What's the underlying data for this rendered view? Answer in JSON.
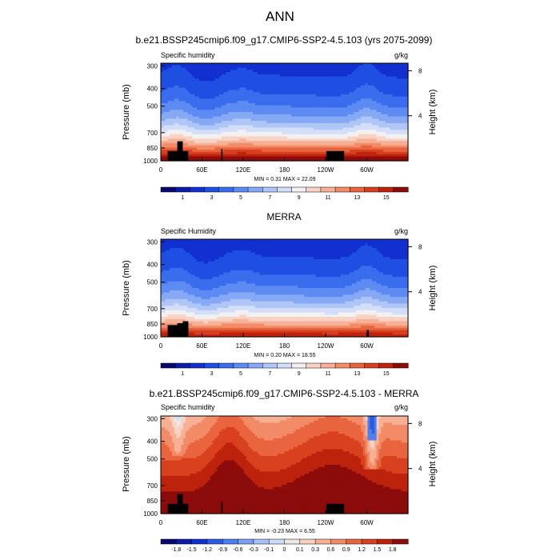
{
  "page_title": "ANN",
  "chart_data": [
    {
      "type": "heatmap",
      "title": "b.e21.BSSP245cmip6.f09_g17.CMIP6-SSP2-4.5.103 (yrs 2075-2099)",
      "left_string": "Specific humidity",
      "right_string": "g/kg",
      "ylabel": "Pressure (mb)",
      "right_label": "Height (km)",
      "y_ticks": [
        "300",
        "400",
        "500",
        "700",
        "850",
        "1000"
      ],
      "right_ticks": [
        "8",
        "4"
      ],
      "x_ticks": [
        "0",
        "60E",
        "120E",
        "180",
        "120W",
        "60W"
      ],
      "stats": "MIN =   0.31  MAX =  22.09",
      "colorbar_labels": [
        "1",
        "3",
        "5",
        "7",
        "9",
        "11",
        "13",
        "15"
      ],
      "colorbar_levels": [
        0.5,
        1,
        2,
        3,
        4,
        5,
        6,
        7,
        8,
        9,
        10,
        11,
        12,
        13,
        14,
        15,
        16
      ],
      "scale": "g/kg"
    },
    {
      "type": "heatmap",
      "title": "MERRA",
      "left_string": "Specific Humidity",
      "right_string": "g/kg",
      "ylabel": "Pressure (mb)",
      "right_label": "Height (km)",
      "y_ticks": [
        "300",
        "400",
        "500",
        "700",
        "850",
        "1000"
      ],
      "right_ticks": [
        "8",
        "4"
      ],
      "x_ticks": [
        "0",
        "60E",
        "120E",
        "180",
        "120W",
        "60W"
      ],
      "stats": "MIN =   0.20  MAX =  18.55",
      "colorbar_labels": [
        "1",
        "3",
        "5",
        "7",
        "9",
        "11",
        "13",
        "15"
      ],
      "colorbar_levels": [
        0.5,
        1,
        2,
        3,
        4,
        5,
        6,
        7,
        8,
        9,
        10,
        11,
        12,
        13,
        14,
        15,
        16
      ],
      "scale": "g/kg"
    },
    {
      "type": "heatmap",
      "title": "b.e21.BSSP245cmip6.f09_g17.CMIP6-SSP2-4.5.103 - MERRA",
      "left_string": "Specific humidity",
      "right_string": "g/kg",
      "ylabel": "Pressure (mb)",
      "right_label": "Height (km)",
      "y_ticks": [
        "300",
        "400",
        "500",
        "700",
        "850",
        "1000"
      ],
      "right_ticks": [
        "8",
        "4"
      ],
      "x_ticks": [
        "0",
        "60E",
        "120E",
        "180",
        "120W",
        "60W"
      ],
      "stats": "MIN =  -0.23  MAX =   6.55",
      "colorbar_labels": [
        "-1.8",
        "-1.5",
        "-1.2",
        "-0.9",
        "-0.6",
        "-0.3",
        "-0.1",
        "0",
        "0.1",
        "0.3",
        "0.6",
        "0.9",
        "1.2",
        "1.5",
        "1.8"
      ],
      "scale": "difference"
    }
  ],
  "colors": {
    "seq_palette": [
      "#08086e",
      "#0c1ca8",
      "#1230cf",
      "#1f4fe2",
      "#3a6cee",
      "#5d8bf2",
      "#86a9f5",
      "#afc6f7",
      "#d3def8",
      "#f2f0f0",
      "#f8d3c4",
      "#f7b196",
      "#f28c68",
      "#e8643f",
      "#d7401f",
      "#bf230e",
      "#8b0c0b"
    ],
    "div_palette": [
      "#08086e",
      "#0c1ca8",
      "#1230cf",
      "#2a5be6",
      "#4f7fef",
      "#7aa0f3",
      "#a5c0f6",
      "#cfdcf8",
      "#ece6e4",
      "#f9d2c1",
      "#f7b093",
      "#f28b67",
      "#e9653f",
      "#d8411f",
      "#bd220d",
      "#8b0c0b"
    ],
    "land_mask": "#000000"
  }
}
